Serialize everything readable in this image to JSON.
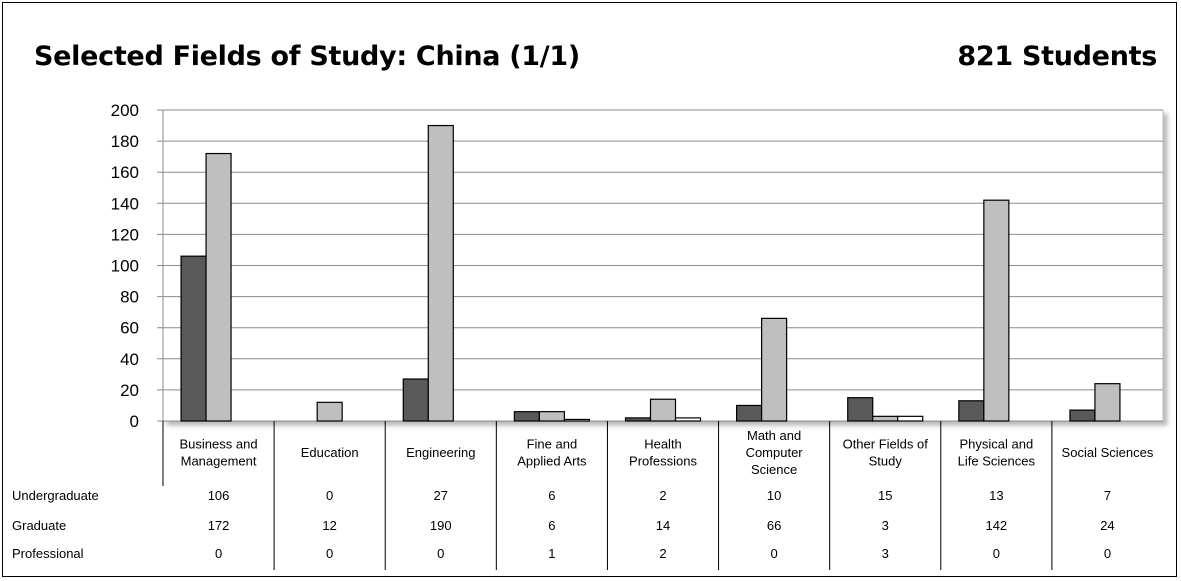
{
  "title": "Selected Fields of Study: China (1/1)",
  "total_label": "821 Students",
  "colors": {
    "Undergraduate": "#595959",
    "Graduate": "#bfbfbf",
    "Professional": "#ffffff"
  },
  "chart_data": {
    "type": "bar",
    "title": "Selected Fields of Study: China (1/1)",
    "categories": [
      [
        "Business and",
        "Management"
      ],
      [
        "Education"
      ],
      [
        "Engineering"
      ],
      [
        "Fine and",
        "Applied Arts"
      ],
      [
        "Health",
        "Professions"
      ],
      [
        "Math and",
        "Computer",
        "Science"
      ],
      [
        "Other Fields of",
        "Study"
      ],
      [
        "Physical and",
        "Life Sciences"
      ],
      [
        "Social Sciences"
      ]
    ],
    "series": [
      {
        "name": "Undergraduate",
        "values": [
          106,
          0,
          27,
          6,
          2,
          10,
          15,
          13,
          7
        ]
      },
      {
        "name": "Graduate",
        "values": [
          172,
          12,
          190,
          6,
          14,
          66,
          3,
          142,
          24
        ]
      },
      {
        "name": "Professional",
        "values": [
          0,
          0,
          0,
          1,
          2,
          0,
          3,
          0,
          0
        ]
      }
    ],
    "ylim": [
      0,
      200
    ],
    "yticks": [
      0,
      20,
      40,
      60,
      80,
      100,
      120,
      140,
      160,
      180,
      200
    ],
    "grid": true,
    "legend": "data-table"
  }
}
